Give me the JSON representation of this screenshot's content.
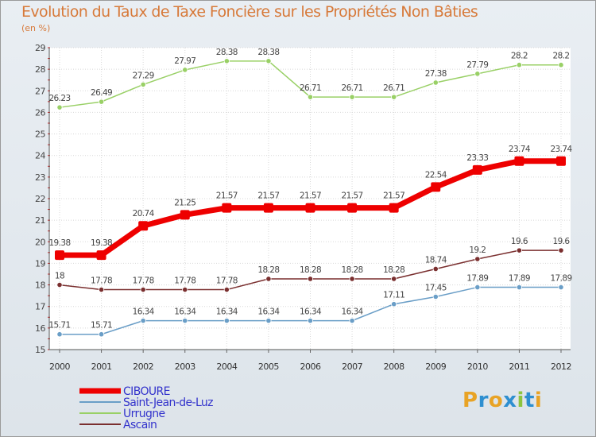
{
  "header": {
    "title": "Evolution du Taux de Taxe Foncière sur les Propriétés Non Bâties",
    "unit": "(en %)"
  },
  "logo": {
    "chars": [
      "P",
      "r",
      "o",
      "x",
      "i",
      "t",
      "i"
    ],
    "colors": [
      "#e8a325",
      "#2e8fd0",
      "#e8a325",
      "#2e8fd0",
      "#8cc43f",
      "#2e8fd0",
      "#e8a325"
    ]
  },
  "chart_data": {
    "type": "line",
    "title": "Evolution du Taux de Taxe Foncière sur les Propriétés Non Bâties",
    "ylabel": "(en %)",
    "xlabel": "",
    "ylim": [
      15,
      29
    ],
    "yticks": [
      15,
      16,
      17,
      18,
      19,
      20,
      21,
      22,
      23,
      24,
      25,
      26,
      27,
      28,
      29
    ],
    "categories": [
      "2000",
      "2001",
      "2002",
      "2003",
      "2004",
      "2005",
      "2006",
      "2007",
      "2008",
      "2009",
      "2010",
      "2011",
      "2012"
    ],
    "series": [
      {
        "name": "CIBOURE",
        "color": "#ee0000",
        "values": [
          19.38,
          19.38,
          20.74,
          21.25,
          21.57,
          21.57,
          21.57,
          21.57,
          21.57,
          22.54,
          23.33,
          23.74,
          23.74
        ],
        "labels": [
          "19.38",
          "19.38",
          "20.74",
          "21.25",
          "21.57",
          "21.57",
          "21.57",
          "21.57",
          "21.57",
          "22.54",
          "23.33",
          "23.74",
          "23.74"
        ]
      },
      {
        "name": "Saint-Jean-de-Luz",
        "color": "#6a9ec7",
        "values": [
          15.71,
          15.71,
          16.34,
          16.34,
          16.34,
          16.34,
          16.34,
          16.34,
          17.11,
          17.45,
          17.89,
          17.89,
          17.89
        ],
        "labels": [
          "15.71",
          "15.71",
          "16.34",
          "16.34",
          "16.34",
          "16.34",
          "16.34",
          "16.34",
          "17.11",
          "17.45",
          "17.89",
          "17.89",
          "17.89"
        ]
      },
      {
        "name": "Urrugne",
        "color": "#99d066",
        "values": [
          26.23,
          26.49,
          27.29,
          27.97,
          28.38,
          28.38,
          26.71,
          26.71,
          26.71,
          27.38,
          27.79,
          28.2,
          28.2
        ],
        "labels": [
          "26.23",
          "26.49",
          "27.29",
          "27.97",
          "28.38",
          "28.38",
          "26.71",
          "26.71",
          "26.71",
          "27.38",
          "27.79",
          "28.2",
          "28.2"
        ]
      },
      {
        "name": "Ascain",
        "color": "#7a2f2f",
        "values": [
          18,
          17.78,
          17.78,
          17.78,
          17.78,
          18.28,
          18.28,
          18.28,
          18.28,
          18.74,
          19.2,
          19.6,
          19.6
        ],
        "labels": [
          "18",
          "17.78",
          "17.78",
          "17.78",
          "17.78",
          "18.28",
          "18.28",
          "18.28",
          "18.28",
          "18.74",
          "19.2",
          "19.6",
          "19.6"
        ]
      }
    ],
    "legend": [
      {
        "name": "CIBOURE",
        "color": "#ee0000",
        "text_color": "#3333cc"
      },
      {
        "name": "Saint-Jean-de-Luz",
        "color": "#6a9ec7",
        "text_color": "#3333cc"
      },
      {
        "name": "Urrugne",
        "color": "#99d066",
        "text_color": "#3333cc"
      },
      {
        "name": "Ascain",
        "color": "#7a2f2f",
        "text_color": "#3333cc"
      }
    ]
  }
}
